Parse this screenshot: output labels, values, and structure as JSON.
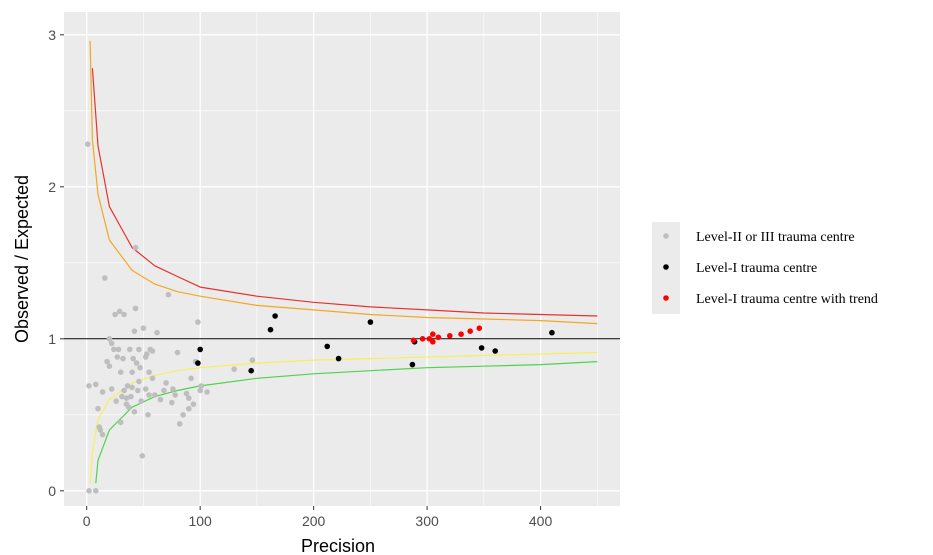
{
  "chart_data": {
    "type": "scatter",
    "title": "",
    "xlabel": "Precision",
    "ylabel": "Observed / Expected",
    "xlim": [
      -20,
      470
    ],
    "ylim": [
      -0.1,
      3.15
    ],
    "xticks": [
      "0",
      "100",
      "200",
      "300",
      "400"
    ],
    "yticks": [
      "0",
      "1",
      "2",
      "3"
    ],
    "grid": true,
    "legend_position": "right",
    "reference_line": 1,
    "colors": {
      "panel": "#ebebeb",
      "grid": "#ffffff",
      "level2_3": "#bebebe",
      "level1": "#000000",
      "level1_trend": "#ff0000",
      "limit_upper_outer": "#e8322a",
      "limit_upper_inner": "#f5a623",
      "limit_lower_inner": "#f5f05a",
      "limit_lower_outer": "#4cd44c"
    },
    "series": [
      {
        "name": "Level-II or III trauma centre",
        "color": "#bebebe",
        "points": [
          [
            1,
            2.28
          ],
          [
            2,
            0.69
          ],
          [
            2,
            0
          ],
          [
            8,
            0
          ],
          [
            8,
            0.7
          ],
          [
            10,
            0.54
          ],
          [
            11,
            0.42
          ],
          [
            12,
            0.4
          ],
          [
            14,
            0.65
          ],
          [
            14,
            0.37
          ],
          [
            16,
            1.4
          ],
          [
            18,
            0.85
          ],
          [
            20,
            0.82
          ],
          [
            20,
            1
          ],
          [
            22,
            0.67
          ],
          [
            22,
            0.97
          ],
          [
            24,
            0.93
          ],
          [
            25,
            1.16
          ],
          [
            26,
            0.59
          ],
          [
            27,
            0.88
          ],
          [
            28,
            0.93
          ],
          [
            29,
            1.18
          ],
          [
            30,
            0.78
          ],
          [
            30,
            0.45
          ],
          [
            31,
            0.62
          ],
          [
            32,
            0.87
          ],
          [
            33,
            1.16
          ],
          [
            33,
            0.66
          ],
          [
            35,
            0.61
          ],
          [
            35,
            0.57
          ],
          [
            36,
            0.69
          ],
          [
            37,
            0.55
          ],
          [
            38,
            0.93
          ],
          [
            39,
            0.62
          ],
          [
            40,
            0.68
          ],
          [
            40,
            0.78
          ],
          [
            41,
            0.87
          ],
          [
            42,
            1.05
          ],
          [
            42,
            0.52
          ],
          [
            43,
            1.6
          ],
          [
            43,
            1.2
          ],
          [
            44,
            0.84
          ],
          [
            45,
            0.66
          ],
          [
            46,
            0.72
          ],
          [
            46,
            0.93
          ],
          [
            47,
            0.81
          ],
          [
            48,
            0.59
          ],
          [
            49,
            0.23
          ],
          [
            50,
            1.07
          ],
          [
            52,
            0.67
          ],
          [
            52,
            0.88
          ],
          [
            53,
            0.9
          ],
          [
            54,
            0.5
          ],
          [
            55,
            0.63
          ],
          [
            55,
            0.78
          ],
          [
            56,
            0.93
          ],
          [
            58,
            0.74
          ],
          [
            58,
            0.92
          ],
          [
            60,
            0.63
          ],
          [
            62,
            1.04
          ],
          [
            65,
            0.6
          ],
          [
            68,
            0.66
          ],
          [
            70,
            0.71
          ],
          [
            72,
            1.29
          ],
          [
            75,
            0.58
          ],
          [
            76,
            0.67
          ],
          [
            78,
            0.63
          ],
          [
            80,
            0.91
          ],
          [
            82,
            0.44
          ],
          [
            85,
            0.5
          ],
          [
            88,
            0.64
          ],
          [
            90,
            0.54
          ],
          [
            90,
            0.61
          ],
          [
            92,
            0.74
          ],
          [
            94,
            0.57
          ],
          [
            96,
            0.85
          ],
          [
            98,
            1.11
          ],
          [
            100,
            0.66
          ],
          [
            101,
            0.69
          ],
          [
            106,
            0.65
          ],
          [
            130,
            0.8
          ],
          [
            146,
            0.86
          ]
        ]
      },
      {
        "name": "Level-I trauma centre",
        "color": "#000000",
        "points": [
          [
            98,
            0.84
          ],
          [
            100,
            0.93
          ],
          [
            145,
            0.79
          ],
          [
            162,
            1.06
          ],
          [
            166,
            1.15
          ],
          [
            212,
            0.95
          ],
          [
            222,
            0.87
          ],
          [
            250,
            1.11
          ],
          [
            287,
            0.83
          ],
          [
            289,
            0.98
          ],
          [
            348,
            0.94
          ],
          [
            360,
            0.92
          ],
          [
            410,
            1.04
          ]
        ]
      },
      {
        "name": "Level-I trauma centre with trend",
        "color": "#ff0000",
        "points": [
          [
            288,
            0.99
          ],
          [
            296,
            1
          ],
          [
            302,
            1
          ],
          [
            305,
            0.98
          ],
          [
            305,
            1.03
          ],
          [
            310,
            1.01
          ],
          [
            320,
            1.02
          ],
          [
            330,
            1.03
          ],
          [
            338,
            1.05
          ],
          [
            346,
            1.07
          ]
        ]
      }
    ],
    "control_limits": [
      {
        "color": "#e8322a",
        "x": [
          5,
          10,
          20,
          40,
          60,
          80,
          100,
          150,
          200,
          250,
          300,
          350,
          400,
          450
        ],
        "y": [
          2.78,
          2.27,
          1.87,
          1.6,
          1.48,
          1.41,
          1.34,
          1.28,
          1.24,
          1.21,
          1.19,
          1.17,
          1.16,
          1.15
        ]
      },
      {
        "color": "#f5a623",
        "x": [
          3,
          5,
          10,
          20,
          40,
          60,
          80,
          100,
          150,
          200,
          250,
          300,
          350,
          400,
          450
        ],
        "y": [
          2.96,
          2.31,
          1.95,
          1.65,
          1.45,
          1.36,
          1.31,
          1.28,
          1.22,
          1.19,
          1.16,
          1.14,
          1.13,
          1.12,
          1.1
        ]
      },
      {
        "color": "#f5f05a",
        "x": [
          3,
          5,
          10,
          20,
          40,
          60,
          80,
          100,
          150,
          200,
          250,
          300,
          350,
          400,
          450
        ],
        "y": [
          0.05,
          0.25,
          0.47,
          0.6,
          0.71,
          0.76,
          0.79,
          0.81,
          0.84,
          0.86,
          0.87,
          0.88,
          0.89,
          0.9,
          0.91
        ]
      },
      {
        "color": "#4cd44c",
        "x": [
          8,
          10,
          20,
          40,
          60,
          80,
          100,
          150,
          200,
          250,
          300,
          350,
          400,
          450
        ],
        "y": [
          0.05,
          0.2,
          0.4,
          0.55,
          0.62,
          0.66,
          0.69,
          0.74,
          0.77,
          0.79,
          0.81,
          0.82,
          0.83,
          0.85
        ]
      }
    ]
  }
}
